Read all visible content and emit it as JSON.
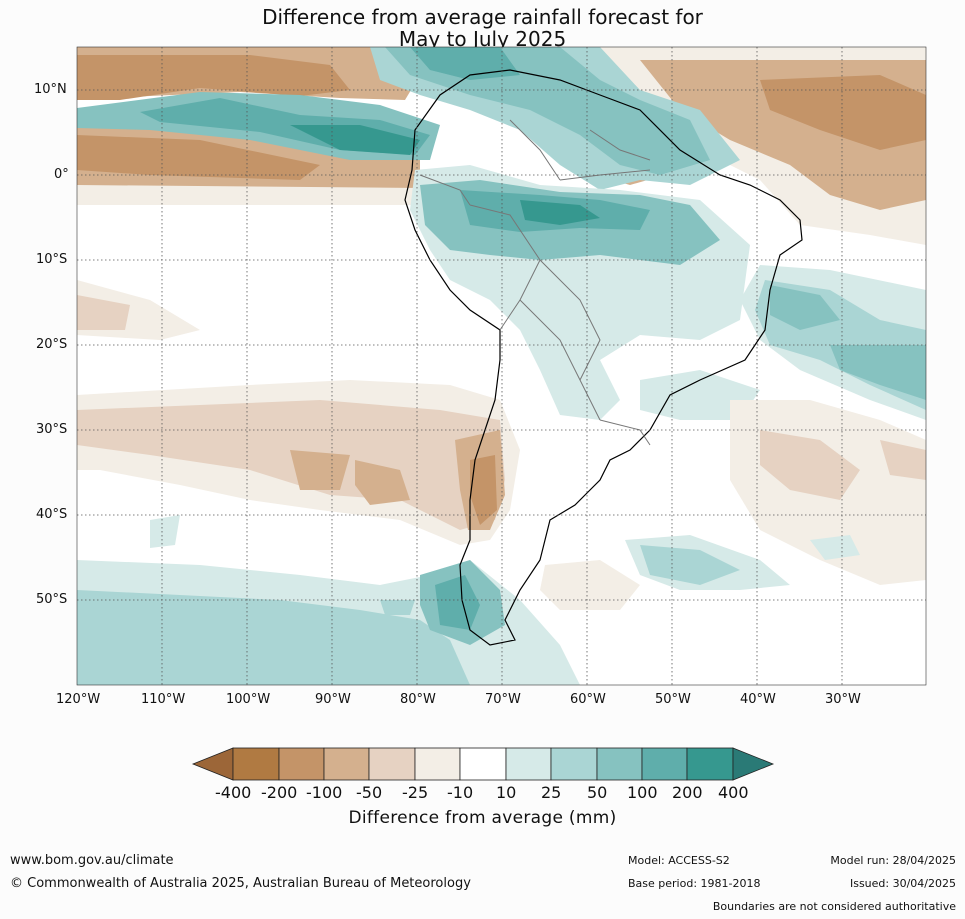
{
  "title": {
    "line1": "Difference from average rainfall forecast for",
    "line2": "May to July 2025"
  },
  "map": {
    "longitude_labels": [
      "120°W",
      "110°W",
      "100°W",
      "90°W",
      "80°W",
      "70°W",
      "60°W",
      "50°W",
      "40°W",
      "30°W"
    ],
    "latitude_labels": [
      "10°N",
      "0°",
      "10°S",
      "20°S",
      "30°S",
      "40°S",
      "50°S"
    ]
  },
  "legend": {
    "tick_labels": [
      "-400",
      "-200",
      "-100",
      "-50",
      "-25",
      "-10",
      "10",
      "25",
      "50",
      "100",
      "200",
      "400"
    ],
    "colors": [
      "#9c6638",
      "#b07a42",
      "#c49468",
      "#d4b08e",
      "#e6d2c2",
      "#f3eee6",
      "#ffffff",
      "#d6eae8",
      "#aad5d4",
      "#86c2c0",
      "#5faeab",
      "#36988f",
      "#2a7a76"
    ],
    "title": "Difference from average (mm)"
  },
  "footer": {
    "website": "www.bom.gov.au/climate",
    "copyright": "© Commonwealth of Australia 2025, Australian Bureau of Meteorology",
    "model": "Model: ACCESS-S2",
    "base_period": "Base period: 1981-2018",
    "model_run": "Model run: 28/04/2025",
    "issued": "Issued: 30/04/2025",
    "disclaimer": "Boundaries are not considered authoritative"
  }
}
